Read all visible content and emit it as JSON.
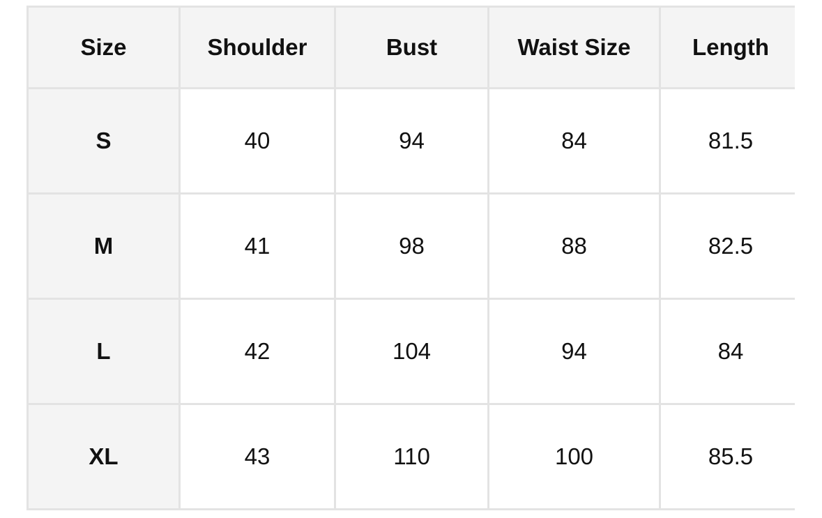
{
  "table": {
    "headers": [
      "Size",
      "Shoulder",
      "Bust",
      "Waist Size",
      "Length"
    ],
    "rows": [
      [
        "S",
        "40",
        "94",
        "84",
        "81.5"
      ],
      [
        "M",
        "41",
        "98",
        "88",
        "82.5"
      ],
      [
        "L",
        "42",
        "104",
        "94",
        "84"
      ],
      [
        "XL",
        "43",
        "110",
        "100",
        "85.5"
      ]
    ]
  }
}
